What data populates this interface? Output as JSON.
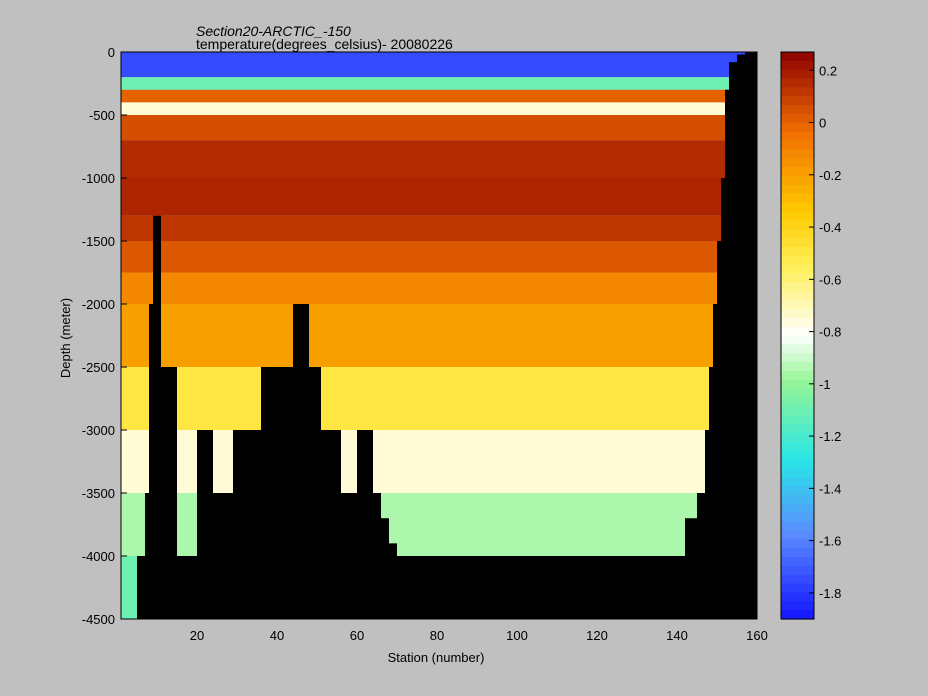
{
  "chart_data": {
    "type": "heatmap",
    "title": "Section20-ARCTIC_-150",
    "subtitle": "temperature(degrees_celsius)- 20080226",
    "xlabel": "Station (number)",
    "ylabel": "Depth (meter)",
    "xlim": [
      1,
      160
    ],
    "ylim": [
      -4500,
      0
    ],
    "x_ticks": [
      "20",
      "40",
      "60",
      "80",
      "100",
      "120",
      "140",
      "160"
    ],
    "x_tick_values": [
      20,
      40,
      60,
      80,
      100,
      120,
      140,
      160
    ],
    "y_ticks": [
      "0",
      "-500",
      "-1000",
      "-1500",
      "-2000",
      "-2500",
      "-3000",
      "-3500",
      "-4000",
      "-4500"
    ],
    "y_tick_values": [
      0,
      -500,
      -1000,
      -1500,
      -2000,
      -2500,
      -3000,
      -3500,
      -4000,
      -4500
    ],
    "colorbar": {
      "min": -1.9,
      "max": 0.27,
      "ticks": [
        "0.2",
        "0",
        "-0.2",
        "-0.4",
        "-0.6",
        "-0.8",
        "-1",
        "-1.2",
        "-1.4",
        "-1.6",
        "-1.8"
      ],
      "tick_values": [
        0.2,
        0,
        -0.2,
        -0.4,
        -0.6,
        -0.8,
        -1,
        -1.2,
        -1.4,
        -1.6,
        -1.8
      ],
      "colormap": "jet-like (blue-cyan-white-yellow-orange-darkred)"
    },
    "depth_layers": [
      {
        "top": 0,
        "bottom": -200,
        "temp": -1.75
      },
      {
        "top": -200,
        "bottom": -300,
        "temp": -1.1
      },
      {
        "top": -300,
        "bottom": -400,
        "temp": 0.0
      },
      {
        "top": -400,
        "bottom": -500,
        "temp": -0.75
      },
      {
        "top": -500,
        "bottom": -700,
        "temp": 0.05
      },
      {
        "top": -700,
        "bottom": -1000,
        "temp": 0.15
      },
      {
        "top": -1000,
        "bottom": -1300,
        "temp": 0.17
      },
      {
        "top": -1300,
        "bottom": -1500,
        "temp": 0.12
      },
      {
        "top": -1500,
        "bottom": -1750,
        "temp": 0.03
      },
      {
        "top": -1750,
        "bottom": -2000,
        "temp": -0.12
      },
      {
        "top": -2000,
        "bottom": -2500,
        "temp": -0.2
      },
      {
        "top": -2500,
        "bottom": -3000,
        "temp": -0.5
      },
      {
        "top": -3000,
        "bottom": -3500,
        "temp": -0.75
      },
      {
        "top": -3500,
        "bottom": -4000,
        "temp": -0.95
      },
      {
        "top": -4000,
        "bottom": -4500,
        "temp": -1.1
      }
    ],
    "bathymetry": {
      "stations": [
        1,
        4,
        5,
        7,
        8,
        9,
        10,
        11,
        15,
        16,
        20,
        22,
        24,
        28,
        29,
        35,
        36,
        44,
        45,
        47,
        48,
        50,
        51,
        55,
        56,
        58,
        60,
        62,
        64,
        66,
        68,
        70,
        72,
        140,
        142,
        145,
        147,
        148,
        149,
        150,
        151,
        152,
        153,
        155,
        157,
        160
      ],
      "bottom_depth": [
        -4500,
        -4500,
        -4000,
        -3500,
        -2000,
        -1300,
        -1300,
        -2500,
        -4000,
        -4000,
        -3000,
        -3000,
        -3500,
        -3500,
        -3000,
        -3000,
        -2500,
        -2000,
        -2000,
        -2000,
        -2500,
        -2500,
        -3000,
        -3000,
        -3500,
        -3500,
        -3000,
        -3000,
        -3500,
        -3700,
        -3900,
        -4000,
        -4000,
        -4000,
        -3700,
        -3500,
        -3000,
        -2500,
        -2000,
        -1500,
        -1000,
        -300,
        -80,
        -20,
        -5,
        0
      ]
    }
  }
}
